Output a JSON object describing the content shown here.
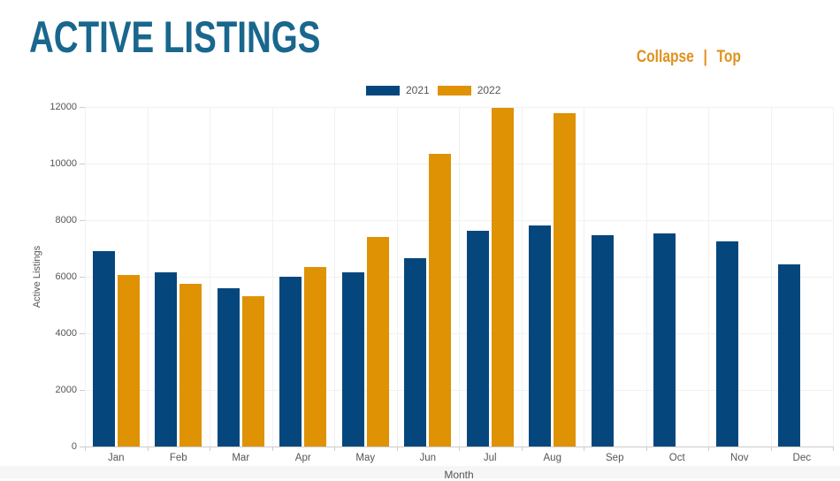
{
  "header": {
    "title": "ACTIVE LISTINGS",
    "links": {
      "collapse": "Collapse",
      "separator": "|",
      "top": "Top"
    }
  },
  "colors": {
    "title_teal": "#19678d",
    "link_orange": "#e0911c",
    "series_2021": "#05477d",
    "series_2022": "#de9204",
    "axis_text": "#555555",
    "gridline": "#f1f1f1",
    "axis_line": "#cccccc",
    "bottom_strip": "#f6f6f6"
  },
  "chart_data": {
    "type": "bar",
    "title": "",
    "xlabel": "Month",
    "ylabel": "Active Listings",
    "ylim": [
      0,
      12000
    ],
    "ytick_interval": 2000,
    "yticks": [
      0,
      2000,
      4000,
      6000,
      8000,
      10000,
      12000
    ],
    "grid": "on",
    "legend_position": "top-center",
    "categories": [
      "Jan",
      "Feb",
      "Mar",
      "Apr",
      "May",
      "Jun",
      "Jul",
      "Aug",
      "Sep",
      "Oct",
      "Nov",
      "Dec"
    ],
    "series": [
      {
        "name": "2021",
        "color": "#05477d",
        "values": [
          6900,
          6150,
          5600,
          6000,
          6150,
          6670,
          7620,
          7820,
          7460,
          7520,
          7250,
          6430
        ]
      },
      {
        "name": "2022",
        "color": "#de9204",
        "values": [
          6050,
          5750,
          5320,
          6350,
          7400,
          10350,
          11980,
          11780,
          null,
          null,
          null,
          null
        ]
      }
    ]
  }
}
